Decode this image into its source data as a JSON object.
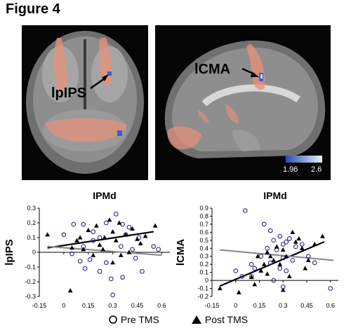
{
  "figure": {
    "title": "Figure 4"
  },
  "brain_panels": {
    "coronal_label": "lpIPS",
    "sagittal_label": "lCMA",
    "colorbar_min": "1.96",
    "colorbar_max": "2.6",
    "colors": {
      "background": "#050505",
      "activation_orange": "#e8907a",
      "cluster_blue": "#3d5bd8",
      "colorbar_low": "#2f4aa8",
      "colorbar_high": "#dff3ff"
    }
  },
  "legend": {
    "pre_label": "Pre TMS",
    "post_label": "Post TMS",
    "pre_marker": "open-circle",
    "post_marker": "filled-triangle"
  },
  "chart_data": [
    {
      "type": "scatter",
      "title": "IPMd",
      "xlabel": "",
      "ylabel": "lpIPS",
      "xlim": [
        -0.15,
        0.65
      ],
      "ylim": [
        -0.3,
        0.3
      ],
      "x_ticks": [
        "-0.15",
        "0",
        "0.15",
        "0.3",
        "0.45",
        "0.6"
      ],
      "y_ticks": [
        "0.3",
        "0.2",
        "0.1",
        "0",
        "-0.1",
        "-0.2",
        "-0.3"
      ],
      "grid": false,
      "series": [
        {
          "name": "Pre TMS",
          "marker": "open-circle",
          "color": "#2a2a8c",
          "points": [
            [
              0.06,
              0.19
            ],
            [
              0.12,
              0.19
            ],
            [
              0.12,
              0.04
            ],
            [
              0.18,
              0.08
            ],
            [
              0.22,
              0.1
            ],
            [
              0.26,
              0.2
            ],
            [
              0.32,
              0.26
            ],
            [
              0.36,
              0.19
            ],
            [
              0.38,
              0.12
            ],
            [
              0.4,
              0.17
            ],
            [
              0.46,
              0.1
            ],
            [
              0.0,
              0.12
            ],
            [
              0.05,
              -0.01
            ],
            [
              0.1,
              -0.06
            ],
            [
              0.13,
              -0.11
            ],
            [
              0.16,
              -0.05
            ],
            [
              0.22,
              -0.13
            ],
            [
              0.26,
              -0.07
            ],
            [
              0.29,
              -0.18
            ],
            [
              0.3,
              -0.29
            ],
            [
              0.35,
              0.04
            ],
            [
              0.42,
              0.02
            ],
            [
              0.44,
              -0.04
            ],
            [
              0.48,
              -0.13
            ],
            [
              0.55,
              0.04
            ],
            [
              0.58,
              0.02
            ],
            [
              0.36,
              -0.17
            ],
            [
              0.18,
              0.14
            ]
          ]
        },
        {
          "name": "Post TMS",
          "marker": "filled-triangle",
          "color": "#000000",
          "points": [
            [
              -0.1,
              0.12
            ],
            [
              0.05,
              0.03
            ],
            [
              0.08,
              0.08
            ],
            [
              0.1,
              0.1
            ],
            [
              0.12,
              0.02
            ],
            [
              0.15,
              0.15
            ],
            [
              0.18,
              -0.02
            ],
            [
              0.2,
              0.18
            ],
            [
              0.22,
              0.05
            ],
            [
              0.25,
              0.1
            ],
            [
              0.28,
              0.22
            ],
            [
              0.3,
              0.14
            ],
            [
              0.32,
              0.08
            ],
            [
              0.34,
              0.2
            ],
            [
              0.35,
              -0.02
            ],
            [
              0.38,
              0.12
            ],
            [
              0.4,
              0.0
            ],
            [
              0.42,
              0.16
            ],
            [
              0.45,
              0.09
            ],
            [
              0.47,
              0.06
            ],
            [
              0.5,
              0.11
            ],
            [
              0.3,
              -0.07
            ],
            [
              0.24,
              0.02
            ],
            [
              0.04,
              -0.26
            ],
            [
              0.56,
              0.18
            ]
          ]
        }
      ],
      "fit_lines": [
        {
          "series": "Post TMS",
          "color": "#000000",
          "from": [
            -0.1,
            0.03
          ],
          "to": [
            0.55,
            0.14
          ]
        },
        {
          "series": "Pre TMS",
          "color": "#8c8c8c",
          "from": [
            -0.1,
            0.04
          ],
          "to": [
            0.6,
            -0.02
          ]
        }
      ]
    },
    {
      "type": "scatter",
      "title": "IPMd",
      "xlabel": "",
      "ylabel": "lCMA",
      "xlim": [
        -0.15,
        0.65
      ],
      "ylim": [
        -0.2,
        0.9
      ],
      "x_ticks": [
        "-0.15",
        "0",
        "0.15",
        "0.3",
        "0.45",
        "0.6"
      ],
      "y_ticks": [
        "0.9",
        "0.8",
        "0.7",
        "0.6",
        "0.5",
        "0.4",
        "0.3",
        "0.2",
        "0.1",
        "0",
        "-0.1",
        "-0.2"
      ],
      "grid": false,
      "series": [
        {
          "name": "Pre TMS",
          "marker": "open-circle",
          "color": "#2a2a8c",
          "points": [
            [
              0.06,
              0.87
            ],
            [
              0.18,
              0.7
            ],
            [
              0.22,
              0.62
            ],
            [
              0.24,
              0.5
            ],
            [
              0.28,
              0.55
            ],
            [
              0.3,
              0.45
            ],
            [
              0.32,
              0.48
            ],
            [
              0.34,
              0.52
            ],
            [
              0.38,
              0.42
            ],
            [
              0.2,
              0.4
            ],
            [
              0.16,
              0.3
            ],
            [
              0.1,
              0.2
            ],
            [
              0.04,
              0.05
            ],
            [
              0.0,
              0.12
            ],
            [
              0.12,
              0.15
            ],
            [
              0.26,
              0.38
            ],
            [
              0.3,
              0.28
            ],
            [
              0.36,
              0.25
            ],
            [
              0.42,
              0.45
            ],
            [
              0.46,
              0.3
            ],
            [
              0.5,
              0.22
            ],
            [
              0.28,
              0.15
            ],
            [
              0.32,
              0.12
            ],
            [
              0.1,
              0.05
            ],
            [
              0.24,
              0.0
            ],
            [
              0.3,
              -0.08
            ],
            [
              0.6,
              -0.1
            ],
            [
              0.22,
              0.22
            ]
          ]
        },
        {
          "name": "Post TMS",
          "marker": "filled-triangle",
          "color": "#000000",
          "points": [
            [
              -0.1,
              -0.1
            ],
            [
              0.02,
              -0.15
            ],
            [
              0.1,
              0.04
            ],
            [
              0.14,
              0.3
            ],
            [
              0.16,
              0.12
            ],
            [
              0.18,
              0.2
            ],
            [
              0.2,
              0.35
            ],
            [
              0.22,
              0.3
            ],
            [
              0.24,
              0.25
            ],
            [
              0.26,
              0.42
            ],
            [
              0.28,
              0.2
            ],
            [
              0.3,
              0.38
            ],
            [
              0.32,
              0.3
            ],
            [
              0.34,
              0.05
            ],
            [
              0.36,
              0.6
            ],
            [
              0.38,
              0.48
            ],
            [
              0.4,
              0.52
            ],
            [
              0.42,
              0.4
            ],
            [
              0.44,
              0.15
            ],
            [
              0.46,
              0.25
            ],
            [
              0.5,
              0.45
            ],
            [
              0.55,
              0.55
            ],
            [
              0.3,
              -0.12
            ],
            [
              0.12,
              -0.05
            ],
            [
              0.2,
              0.08
            ]
          ]
        }
      ],
      "fit_lines": [
        {
          "series": "Post TMS",
          "color": "#000000",
          "from": [
            -0.1,
            -0.07
          ],
          "to": [
            0.56,
            0.48
          ]
        },
        {
          "series": "Pre TMS",
          "color": "#8c8c8c",
          "from": [
            -0.1,
            0.38
          ],
          "to": [
            0.62,
            0.25
          ]
        }
      ]
    }
  ]
}
